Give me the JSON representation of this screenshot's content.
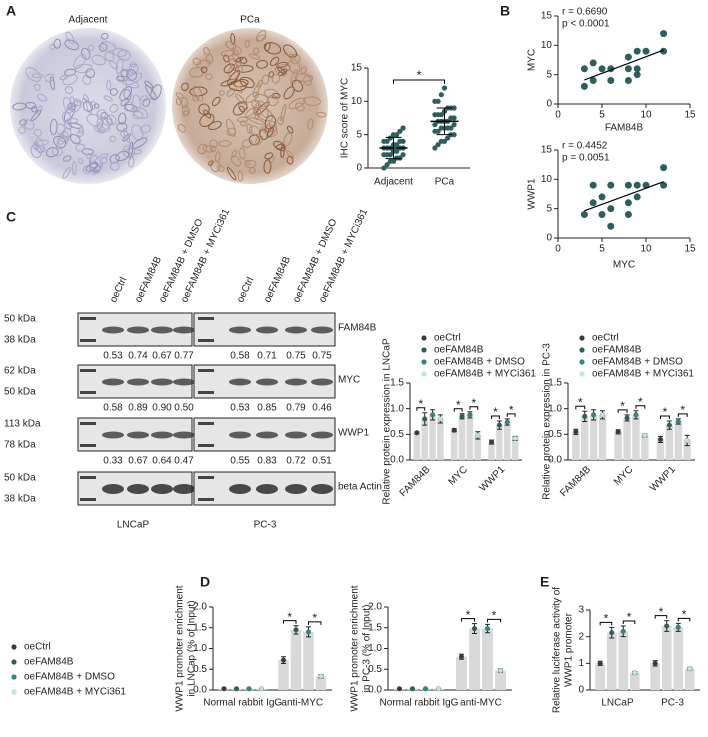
{
  "panel_labels": [
    "A",
    "B",
    "C",
    "D",
    "E"
  ],
  "ihc": {
    "labels": [
      "Adjacent",
      "PCa"
    ]
  },
  "western": {
    "lanes": [
      "oeCtrl",
      "oeFAM84B",
      "oeFAM84B + DMSO",
      "oeFAM84B + MYCi361"
    ],
    "cell_lines": [
      "LNCaP",
      "PC-3"
    ],
    "blots": [
      {
        "target": "FAM84B",
        "markers": [
          "50 kDa",
          "38 kDa"
        ],
        "values": [
          [
            "0.53",
            "0.74",
            "0.67",
            "0.77"
          ],
          [
            "0.58",
            "0.71",
            "0.75",
            "0.75"
          ]
        ]
      },
      {
        "target": "MYC",
        "markers": [
          "62 kDa",
          "50 kDa"
        ],
        "values": [
          [
            "0.58",
            "0.89",
            "0.90",
            "0.50"
          ],
          [
            "0.53",
            "0.85",
            "0.79",
            "0.46"
          ]
        ]
      },
      {
        "target": "WWP1",
        "markers": [
          "113 kDa",
          "78 kDa"
        ],
        "values": [
          [
            "0.33",
            "0.67",
            "0.64",
            "0.47"
          ],
          [
            "0.55",
            "0.83",
            "0.72",
            "0.51"
          ]
        ]
      },
      {
        "target": "beta Actin",
        "markers": [
          "50 kDa",
          "38 kDa"
        ]
      }
    ]
  },
  "chart_data": [
    {
      "type": "dotplot",
      "y_label": [
        "IHC score of MYC"
      ],
      "categories": [
        "Adjacent",
        "PCa"
      ],
      "values": [
        [
          0,
          0.5,
          1,
          1,
          1.5,
          1.5,
          2,
          2,
          2,
          2,
          2.5,
          2.5,
          3,
          3,
          3,
          3,
          3,
          3.5,
          3.5,
          4,
          4,
          4,
          4,
          4.5,
          5,
          5,
          5.5,
          6
        ],
        [
          3,
          3.5,
          4,
          4,
          4.5,
          5,
          5,
          5.5,
          5.5,
          6,
          6,
          6,
          6,
          6.5,
          6.5,
          7,
          7,
          7,
          7,
          7.5,
          7.5,
          8,
          8,
          8,
          8.5,
          9,
          9,
          9,
          10,
          10,
          11,
          12
        ]
      ],
      "mean": [
        3.0,
        7.0
      ],
      "sd": [
        1.6,
        2.0
      ],
      "color": "#2e5e5e",
      "ylim": [
        0,
        15
      ],
      "yticks": [
        0,
        5,
        10,
        15
      ],
      "annotation": "*"
    },
    {
      "type": "scatter",
      "x_label": "FAM84B",
      "y_label": [
        "MYC"
      ],
      "r_label": "r = 0.6690",
      "p_label": "p < 0.0001",
      "x": [
        3,
        3,
        4,
        4,
        5,
        6,
        6,
        8,
        8,
        8,
        9,
        9,
        9,
        10,
        12,
        12
      ],
      "values": [
        6,
        3,
        7,
        4,
        6,
        4,
        6,
        6,
        4,
        8,
        9,
        6,
        5,
        9,
        12,
        9
      ],
      "color": "#2e5e5e",
      "trend_line": true,
      "xlim": [
        0,
        15
      ],
      "xticks": [
        0,
        5,
        10,
        15
      ],
      "ylim": [
        0,
        15
      ],
      "yticks": [
        0,
        5,
        10,
        15
      ]
    },
    {
      "type": "scatter",
      "x_label": "MYC",
      "y_label": [
        "WWP1"
      ],
      "r_label": "r = 0.4452",
      "p_label": "p = 0.0051",
      "x": [
        3,
        4,
        4,
        5,
        5,
        6,
        6,
        6,
        8,
        8,
        8,
        9,
        9,
        10,
        12,
        12
      ],
      "values": [
        4,
        6,
        9,
        4,
        7,
        9,
        5,
        2,
        6,
        9,
        4,
        7,
        9,
        9,
        12,
        9
      ],
      "color": "#2e5e5e",
      "trend_line": true,
      "xlim": [
        0,
        15
      ],
      "xticks": [
        0,
        5,
        10,
        15
      ],
      "ylim": [
        0,
        15
      ],
      "yticks": [
        0,
        5,
        10,
        15
      ]
    },
    {
      "type": "bar",
      "y_label": [
        "Relative protein expression in LNCaP"
      ],
      "categories": [
        "FAM84B",
        "MYC",
        "WWP1"
      ],
      "rotate_labels": true,
      "bar_color": "#d9d9d9",
      "legend": "top",
      "annotation": "*",
      "ylim": [
        0,
        1.5
      ],
      "yticks": [
        {
          "value": 0,
          "label": "0.0"
        },
        0.5,
        {
          "value": 1,
          "label": "1.0"
        },
        1.5
      ],
      "series": [
        {
          "name": "oeCtrl",
          "color": "#3a3a3a",
          "values": [
            0.53,
            0.58,
            0.35
          ],
          "errors": [
            0.02,
            0.03,
            0.04
          ]
        },
        {
          "name": "oeFAM84B",
          "color": "#2e5e5e",
          "values": [
            0.8,
            0.85,
            0.68
          ],
          "errors": [
            0.12,
            0.05,
            0.08
          ]
        },
        {
          "name": "oeFAM84B + DMSO",
          "color": "#2a8a8a",
          "values": [
            0.88,
            0.88,
            0.74
          ],
          "errors": [
            0.1,
            0.06,
            0.06
          ]
        },
        {
          "name": "oeFAM84B + MYCi361",
          "color": "#bfe6e0",
          "values": [
            0.8,
            0.48,
            0.42
          ],
          "errors": [
            0.08,
            0.07,
            0.04
          ]
        }
      ]
    },
    {
      "type": "bar",
      "y_label": [
        "Relative protein expression in PC-3"
      ],
      "categories": [
        "FAM84B",
        "MYC",
        "WWP1"
      ],
      "rotate_labels": true,
      "bar_color": "#d9d9d9",
      "legend": "top",
      "annotation": "*",
      "ylim": [
        0,
        1.5
      ],
      "yticks": [
        {
          "value": 0,
          "label": "0.0"
        },
        0.5,
        {
          "value": 1,
          "label": "1.0"
        },
        1.5
      ],
      "series": [
        {
          "name": "oeCtrl",
          "color": "#3a3a3a",
          "values": [
            0.55,
            0.55,
            0.4
          ],
          "errors": [
            0.05,
            0.04,
            0.06
          ]
        },
        {
          "name": "oeFAM84B",
          "color": "#2e5e5e",
          "values": [
            0.85,
            0.82,
            0.68
          ],
          "errors": [
            0.1,
            0.06,
            0.08
          ]
        },
        {
          "name": "oeFAM84B + DMSO",
          "color": "#2a8a8a",
          "values": [
            0.88,
            0.88,
            0.75
          ],
          "errors": [
            0.1,
            0.08,
            0.05
          ]
        },
        {
          "name": "oeFAM84B + MYCi361",
          "color": "#bfe6e0",
          "values": [
            0.88,
            0.48,
            0.38
          ],
          "errors": [
            0.08,
            0.03,
            0.1
          ]
        }
      ]
    },
    {
      "type": "bar",
      "y_label": [
        "WWP1 promoter enrichment",
        "in LNCap (% of Input)"
      ],
      "categories": [
        "Normal rabbit IgG",
        "anti-MYC"
      ],
      "bar_color": "#d9d9d9",
      "legend": "left",
      "annotation": "*",
      "ylim": [
        0,
        2
      ],
      "yticks": [
        {
          "value": 0,
          "label": "0.0"
        },
        0.5,
        {
          "value": 1,
          "label": "1.0"
        },
        1.5,
        {
          "value": 2,
          "label": "2.0"
        }
      ],
      "series": [
        {
          "name": "oeCtrl",
          "color": "#3a3a3a",
          "values": [
            0.03,
            0.72
          ],
          "errors": [
            0.01,
            0.08
          ]
        },
        {
          "name": "oeFAM84B",
          "color": "#2e5e5e",
          "values": [
            0.03,
            1.45
          ],
          "errors": [
            0.01,
            0.1
          ]
        },
        {
          "name": "oeFAM84B + DMSO",
          "color": "#2a8a8a",
          "values": [
            0.03,
            1.4
          ],
          "errors": [
            0.01,
            0.12
          ]
        },
        {
          "name": "oeFAM84B + MYCi361",
          "color": "#bfe6e0",
          "values": [
            0.03,
            0.33
          ],
          "errors": [
            0.01,
            0.04
          ]
        }
      ]
    },
    {
      "type": "bar",
      "y_label": [
        "WWP1 promoter enrichment",
        "in PC-3 (% of Input)"
      ],
      "categories": [
        "Normal rabbit IgG",
        "anti-MYC"
      ],
      "bar_color": "#d9d9d9",
      "annotation": "*",
      "ylim": [
        0,
        2
      ],
      "yticks": [
        {
          "value": 0,
          "label": "0.0"
        },
        0.5,
        {
          "value": 1,
          "label": "1.0"
        },
        1.5,
        {
          "value": 2,
          "label": "2.0"
        }
      ],
      "series": [
        {
          "color": "#3a3a3a",
          "values": [
            0.03,
            0.8
          ],
          "errors": [
            0.01,
            0.06
          ]
        },
        {
          "color": "#2e5e5e",
          "values": [
            0.03,
            1.48
          ],
          "errors": [
            0.01,
            0.12
          ]
        },
        {
          "color": "#2a8a8a",
          "values": [
            0.03,
            1.48
          ],
          "errors": [
            0.01,
            0.1
          ]
        },
        {
          "color": "#bfe6e0",
          "values": [
            0.03,
            0.47
          ],
          "errors": [
            0.01,
            0.04
          ]
        }
      ]
    },
    {
      "type": "bar",
      "y_label": [
        "Relative luciferase activity of",
        "WWP1 promoter"
      ],
      "categories": [
        "LNCaP",
        "PC-3"
      ],
      "bar_color": "#d9d9d9",
      "annotation": "*",
      "ylim": [
        0,
        3
      ],
      "yticks": [
        0,
        1,
        2,
        3
      ],
      "series": [
        {
          "color": "#3a3a3a",
          "values": [
            1.0,
            1.0
          ],
          "errors": [
            0.08,
            0.1
          ]
        },
        {
          "color": "#2e5e5e",
          "values": [
            2.15,
            2.4
          ],
          "errors": [
            0.2,
            0.2
          ]
        },
        {
          "color": "#2a8a8a",
          "values": [
            2.2,
            2.35
          ],
          "errors": [
            0.2,
            0.15
          ]
        },
        {
          "color": "#bfe6e0",
          "values": [
            0.65,
            0.8
          ],
          "errors": [
            0.05,
            0.05
          ]
        }
      ]
    }
  ]
}
